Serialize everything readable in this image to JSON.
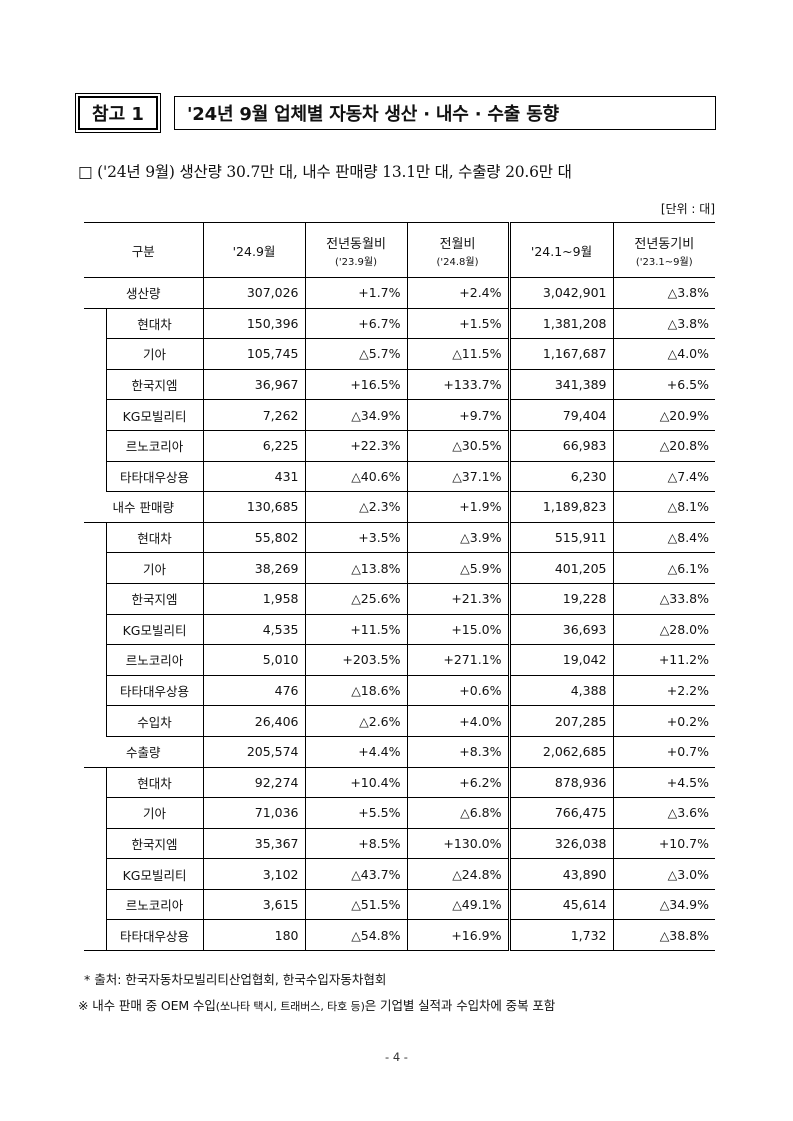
{
  "header": {
    "tag": "참고 1",
    "title": "'24년 9월 업체별 자동차 생산 · 내수 · 수출 동향"
  },
  "summary": "□ ('24년 9월) 생산량 30.7만 대, 내수 판매량 13.1만 대, 수출량 20.6만 대",
  "unit": "[단위 : 대]",
  "table": {
    "headers": {
      "category": "구분",
      "month": "'24.9월",
      "yoy_main": "전년동월비",
      "yoy_sub": "('23.9월)",
      "mom_main": "전월비",
      "mom_sub": "('24.8월)",
      "ytd": "'24.1~9월",
      "ytd_yoy_main": "전년동기비",
      "ytd_yoy_sub": "('23.1~9월)"
    },
    "rows": [
      {
        "label": "생산량",
        "level": 0,
        "month": "307,026",
        "yoy": "+1.7%",
        "mom": "+2.4%",
        "ytd": "3,042,901",
        "ytd_yoy": "△3.8%"
      },
      {
        "label": "현대차",
        "level": 1,
        "month": "150,396",
        "yoy": "+6.7%",
        "mom": "+1.5%",
        "ytd": "1,381,208",
        "ytd_yoy": "△3.8%"
      },
      {
        "label": "기아",
        "level": 1,
        "month": "105,745",
        "yoy": "△5.7%",
        "mom": "△11.5%",
        "ytd": "1,167,687",
        "ytd_yoy": "△4.0%"
      },
      {
        "label": "한국지엠",
        "level": 1,
        "month": "36,967",
        "yoy": "+16.5%",
        "mom": "+133.7%",
        "ytd": "341,389",
        "ytd_yoy": "+6.5%"
      },
      {
        "label": "KG모빌리티",
        "level": 1,
        "month": "7,262",
        "yoy": "△34.9%",
        "mom": "+9.7%",
        "ytd": "79,404",
        "ytd_yoy": "△20.9%"
      },
      {
        "label": "르노코리아",
        "level": 1,
        "month": "6,225",
        "yoy": "+22.3%",
        "mom": "△30.5%",
        "ytd": "66,983",
        "ytd_yoy": "△20.8%"
      },
      {
        "label": "타타대우상용",
        "level": 1,
        "month": "431",
        "yoy": "△40.6%",
        "mom": "△37.1%",
        "ytd": "6,230",
        "ytd_yoy": "△7.4%"
      },
      {
        "label": "내수 판매량",
        "level": 0,
        "month": "130,685",
        "yoy": "△2.3%",
        "mom": "+1.9%",
        "ytd": "1,189,823",
        "ytd_yoy": "△8.1%"
      },
      {
        "label": "현대차",
        "level": 1,
        "month": "55,802",
        "yoy": "+3.5%",
        "mom": "△3.9%",
        "ytd": "515,911",
        "ytd_yoy": "△8.4%"
      },
      {
        "label": "기아",
        "level": 1,
        "month": "38,269",
        "yoy": "△13.8%",
        "mom": "△5.9%",
        "ytd": "401,205",
        "ytd_yoy": "△6.1%"
      },
      {
        "label": "한국지엠",
        "level": 1,
        "month": "1,958",
        "yoy": "△25.6%",
        "mom": "+21.3%",
        "ytd": "19,228",
        "ytd_yoy": "△33.8%"
      },
      {
        "label": "KG모빌리티",
        "level": 1,
        "month": "4,535",
        "yoy": "+11.5%",
        "mom": "+15.0%",
        "ytd": "36,693",
        "ytd_yoy": "△28.0%"
      },
      {
        "label": "르노코리아",
        "level": 1,
        "month": "5,010",
        "yoy": "+203.5%",
        "mom": "+271.1%",
        "ytd": "19,042",
        "ytd_yoy": "+11.2%"
      },
      {
        "label": "타타대우상용",
        "level": 1,
        "month": "476",
        "yoy": "△18.6%",
        "mom": "+0.6%",
        "ytd": "4,388",
        "ytd_yoy": "+2.2%"
      },
      {
        "label": "수입차",
        "level": 1,
        "month": "26,406",
        "yoy": "△2.6%",
        "mom": "+4.0%",
        "ytd": "207,285",
        "ytd_yoy": "+0.2%"
      },
      {
        "label": "수출량",
        "level": 0,
        "month": "205,574",
        "yoy": "+4.4%",
        "mom": "+8.3%",
        "ytd": "2,062,685",
        "ytd_yoy": "+0.7%"
      },
      {
        "label": "현대차",
        "level": 1,
        "month": "92,274",
        "yoy": "+10.4%",
        "mom": "+6.2%",
        "ytd": "878,936",
        "ytd_yoy": "+4.5%"
      },
      {
        "label": "기아",
        "level": 1,
        "month": "71,036",
        "yoy": "+5.5%",
        "mom": "△6.8%",
        "ytd": "766,475",
        "ytd_yoy": "△3.6%"
      },
      {
        "label": "한국지엠",
        "level": 1,
        "month": "35,367",
        "yoy": "+8.5%",
        "mom": "+130.0%",
        "ytd": "326,038",
        "ytd_yoy": "+10.7%"
      },
      {
        "label": "KG모빌리티",
        "level": 1,
        "month": "3,102",
        "yoy": "△43.7%",
        "mom": "△24.8%",
        "ytd": "43,890",
        "ytd_yoy": "△3.0%"
      },
      {
        "label": "르노코리아",
        "level": 1,
        "month": "3,615",
        "yoy": "△51.5%",
        "mom": "△49.1%",
        "ytd": "45,614",
        "ytd_yoy": "△34.9%"
      },
      {
        "label": "타타대우상용",
        "level": 1,
        "month": "180",
        "yoy": "△54.8%",
        "mom": "+16.9%",
        "ytd": "1,732",
        "ytd_yoy": "△38.8%"
      }
    ]
  },
  "footnotes": {
    "source": "* 출처: 한국자동차모빌리티산업협회, 한국수입자동차협회",
    "note_main_1": "※ 내수 판매 중 OEM 수입",
    "note_small": "(쏘나타 택시, 트래버스, 타호 등)",
    "note_main_2": "은 기업별 실적과 수입차에 중복 포함"
  },
  "page_number": "- 4 -"
}
